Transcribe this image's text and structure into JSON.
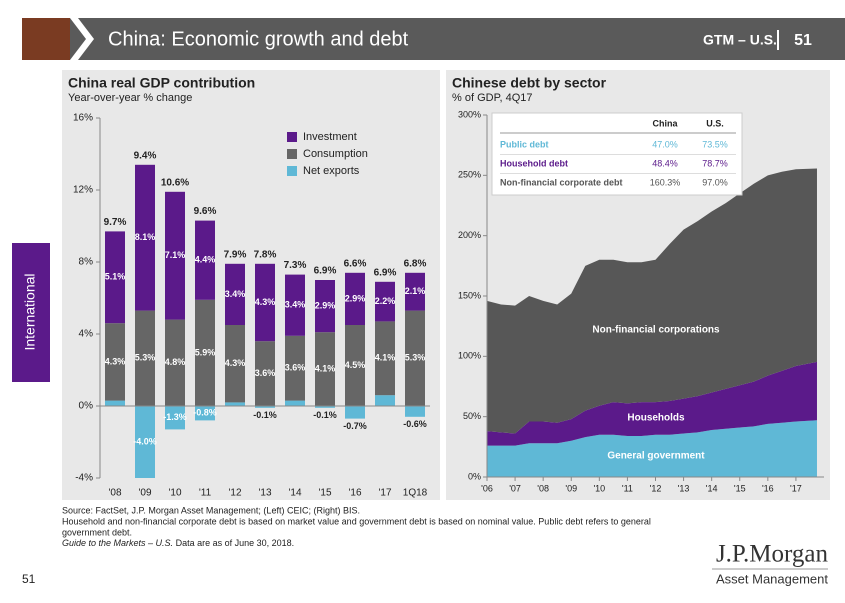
{
  "header": {
    "title": "China: Economic growth and debt",
    "section": "GTM – U.S.",
    "page": "51"
  },
  "sidebar": "International",
  "chart_data": [
    {
      "type": "bar",
      "title": "China real GDP contribution",
      "subtitle": "Year-over-year % change",
      "categories": [
        "'08",
        "'09",
        "'10",
        "'11",
        "'12",
        "'13",
        "'14",
        "'15",
        "'16",
        "'17",
        "1Q18"
      ],
      "series": [
        {
          "name": "Investment",
          "color": "#5b1a8a",
          "values": [
            5.1,
            8.1,
            7.1,
            4.4,
            3.4,
            4.3,
            3.4,
            2.9,
            2.9,
            2.2,
            2.1
          ],
          "value_labels": [
            "5.1%",
            "8.1%",
            "7.1%",
            "4.4%",
            "3.4%",
            "4.3%",
            "3.4%",
            "2.9%",
            "2.9%",
            "2.2%",
            "2.1%"
          ]
        },
        {
          "name": "Consumption",
          "color": "#666666",
          "values": [
            4.3,
            5.3,
            4.8,
            5.9,
            4.3,
            3.6,
            3.6,
            4.1,
            4.5,
            4.1,
            5.3
          ],
          "value_labels": [
            "4.3%",
            "5.3%",
            "4.8%",
            "5.9%",
            "4.3%",
            "3.6%",
            "3.6%",
            "4.1%",
            "4.5%",
            "4.1%",
            "5.3%"
          ]
        },
        {
          "name": "Net exports",
          "color": "#5fb8d6",
          "values": [
            0.3,
            -4.0,
            -1.3,
            -0.8,
            0.2,
            -0.1,
            0.3,
            -0.1,
            -0.7,
            0.6,
            -0.6
          ],
          "value_labels": [
            "0.3%",
            "-4.0%",
            "-1.3%",
            "-0.8%",
            "0.2%",
            "-0.1%",
            "0.3%",
            "-0.1%",
            "-0.7%",
            "0.6%",
            "-0.6%"
          ]
        }
      ],
      "totals": [
        9.7,
        9.4,
        10.6,
        9.6,
        7.9,
        7.8,
        7.3,
        6.9,
        6.6,
        6.9,
        6.8
      ],
      "total_labels": [
        "9.7%",
        "9.4%",
        "10.6%",
        "9.6%",
        "7.9%",
        "7.8%",
        "7.3%",
        "6.9%",
        "6.6%",
        "6.9%",
        "6.8%"
      ],
      "ylim": [
        -4,
        16
      ],
      "yticks": [
        {
          "value": -4,
          "label": "-4%"
        },
        {
          "value": 0,
          "label": "0%"
        },
        {
          "value": 4,
          "label": "4%"
        },
        {
          "value": 8,
          "label": "8%"
        },
        {
          "value": 12,
          "label": "12%"
        },
        {
          "value": 16,
          "label": "16%"
        }
      ]
    },
    {
      "type": "area",
      "title": "Chinese debt by sector",
      "subtitle": "% of GDP, 4Q17",
      "x": [
        2006,
        2006.5,
        2007,
        2007.5,
        2008,
        2008.5,
        2009,
        2009.5,
        2010,
        2010.5,
        2011,
        2011.5,
        2012,
        2012.5,
        2013,
        2013.5,
        2014,
        2014.5,
        2015,
        2015.5,
        2016,
        2016.5,
        2017,
        2017.75
      ],
      "series": [
        {
          "name": "General government",
          "color": "#5fb8d6",
          "values": [
            26,
            26,
            26,
            28,
            28,
            28,
            30,
            33,
            35,
            35,
            34,
            34,
            35,
            35,
            36,
            37,
            39,
            40,
            41,
            42,
            44,
            45,
            46,
            47.0
          ]
        },
        {
          "name": "Households",
          "color": "#5b1a8a",
          "values": [
            12,
            11,
            10,
            18,
            18,
            17,
            18,
            22,
            24,
            27,
            27,
            28,
            27,
            28,
            29,
            30,
            31,
            33,
            35,
            37,
            40,
            43,
            46,
            48.4
          ]
        },
        {
          "name": "Non-financial corporations",
          "color": "#575757",
          "values": [
            108,
            106,
            106,
            104,
            100,
            98,
            104,
            120,
            121,
            118,
            117,
            116,
            118,
            130,
            140,
            145,
            150,
            154,
            159,
            164,
            166,
            165,
            163,
            160.3
          ]
        }
      ],
      "xlim": [
        2006,
        2018
      ],
      "xticks": [
        {
          "value": 2006,
          "label": "'06"
        },
        {
          "value": 2007,
          "label": "'07"
        },
        {
          "value": 2008,
          "label": "'08"
        },
        {
          "value": 2009,
          "label": "'09"
        },
        {
          "value": 2010,
          "label": "'10"
        },
        {
          "value": 2011,
          "label": "'11"
        },
        {
          "value": 2012,
          "label": "'12"
        },
        {
          "value": 2013,
          "label": "'13"
        },
        {
          "value": 2014,
          "label": "'14"
        },
        {
          "value": 2015,
          "label": "'15"
        },
        {
          "value": 2016,
          "label": "'16"
        },
        {
          "value": 2017,
          "label": "'17"
        }
      ],
      "ylim": [
        0,
        300
      ],
      "yticks": [
        {
          "value": 0,
          "label": "0%"
        },
        {
          "value": 50,
          "label": "50%"
        },
        {
          "value": 100,
          "label": "100%"
        },
        {
          "value": 150,
          "label": "150%"
        },
        {
          "value": 200,
          "label": "200%"
        },
        {
          "value": 250,
          "label": "250%"
        },
        {
          "value": 300,
          "label": "300%"
        }
      ],
      "table": {
        "columns": [
          "China",
          "U.S."
        ],
        "rows": [
          [
            "Public debt",
            "47.0%",
            "73.5%"
          ],
          [
            "Household debt",
            "48.4%",
            "78.7%"
          ],
          [
            "Non-financial corporate debt",
            "160.3%",
            "97.0%"
          ]
        ]
      }
    }
  ],
  "footer": {
    "notes": [
      "Source: FactSet, J.P. Morgan Asset Management; (Left) CEIC; (Right) BIS.",
      "Household and non-financial corporate debt is based on market value and government debt is based on nominal value. Public debt refers to general",
      "government debt."
    ],
    "guide": "Guide to the Markets – U.S.",
    "asof": " Data are as of June 30, 2018.",
    "page": "51",
    "logo": "J.P.Morgan",
    "logo_sub": "Asset Management"
  }
}
